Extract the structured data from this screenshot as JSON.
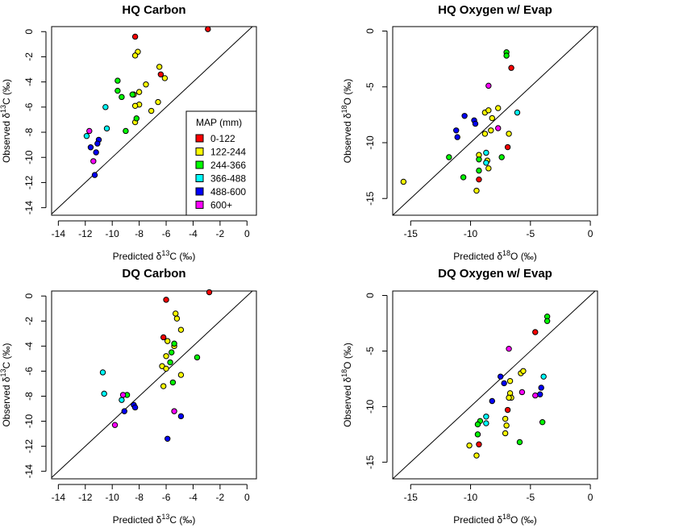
{
  "legend": {
    "title": "MAP (mm)",
    "entries": [
      {
        "label": "0-122",
        "color": "#ff0000"
      },
      {
        "label": "122-244",
        "color": "#ffff00"
      },
      {
        "label": "244-366",
        "color": "#00ff00"
      },
      {
        "label": "366-488",
        "color": "#00ffff"
      },
      {
        "label": "488-600",
        "color": "#0000ff"
      },
      {
        "label": "600+",
        "color": "#ff00ff"
      }
    ]
  },
  "chart_data": [
    {
      "type": "scatter",
      "title": "HQ Carbon",
      "xlabel": {
        "pre": "Predicted δ",
        "sup": "13",
        "post": "C (‰)"
      },
      "ylabel": {
        "pre": "Observed δ",
        "sup": "13",
        "post": "C (‰)"
      },
      "xlim": [
        -14.5,
        0.7
      ],
      "ylim": [
        -14.6,
        0.4
      ],
      "xticks": [
        -14,
        -12,
        -10,
        -8,
        -6,
        -4,
        -2,
        0
      ],
      "yticks": [
        0,
        -2,
        -4,
        -6,
        -8,
        -10,
        -12,
        -14
      ],
      "reference_line": "1:1",
      "legend_position": "bottom-right",
      "points": [
        {
          "x": -2.9,
          "y": 0.2,
          "group": 0
        },
        {
          "x": -8.3,
          "y": -0.4,
          "group": 0
        },
        {
          "x": -6.4,
          "y": -3.4,
          "group": 0
        },
        {
          "x": -8.1,
          "y": -1.6,
          "group": 1
        },
        {
          "x": -8.3,
          "y": -1.9,
          "group": 1
        },
        {
          "x": -6.5,
          "y": -2.8,
          "group": 1
        },
        {
          "x": -6.1,
          "y": -3.7,
          "group": 1
        },
        {
          "x": -7.5,
          "y": -4.2,
          "group": 1
        },
        {
          "x": -8.0,
          "y": -4.8,
          "group": 1
        },
        {
          "x": -8.4,
          "y": -5.0,
          "group": 1
        },
        {
          "x": -8.0,
          "y": -5.8,
          "group": 1
        },
        {
          "x": -8.3,
          "y": -5.9,
          "group": 1
        },
        {
          "x": -6.6,
          "y": -5.6,
          "group": 1
        },
        {
          "x": -7.1,
          "y": -6.3,
          "group": 1
        },
        {
          "x": -8.3,
          "y": -7.2,
          "group": 1
        },
        {
          "x": -9.6,
          "y": -3.9,
          "group": 2
        },
        {
          "x": -9.6,
          "y": -4.7,
          "group": 2
        },
        {
          "x": -9.3,
          "y": -5.2,
          "group": 2
        },
        {
          "x": -8.5,
          "y": -5.0,
          "group": 2
        },
        {
          "x": -8.2,
          "y": -6.9,
          "group": 2
        },
        {
          "x": -9.0,
          "y": -7.9,
          "group": 2
        },
        {
          "x": -10.5,
          "y": -6.0,
          "group": 3
        },
        {
          "x": -10.4,
          "y": -7.7,
          "group": 3
        },
        {
          "x": -11.9,
          "y": -8.3,
          "group": 3
        },
        {
          "x": -11.0,
          "y": -8.6,
          "group": 4
        },
        {
          "x": -11.1,
          "y": -8.9,
          "group": 4
        },
        {
          "x": -11.6,
          "y": -9.2,
          "group": 4
        },
        {
          "x": -11.2,
          "y": -9.6,
          "group": 4
        },
        {
          "x": -11.3,
          "y": -11.4,
          "group": 4
        },
        {
          "x": -11.7,
          "y": -7.9,
          "group": 5
        },
        {
          "x": -11.4,
          "y": -10.3,
          "group": 5
        }
      ]
    },
    {
      "type": "scatter",
      "title": "HQ Oxygen w/ Evap",
      "xlabel": {
        "pre": "Predicted δ",
        "sup": "18",
        "post": "O (‰)"
      },
      "ylabel": {
        "pre": "Observed δ",
        "sup": "18",
        "post": "O (‰)"
      },
      "xlim": [
        -16.5,
        0.6
      ],
      "ylim": [
        -16.5,
        0.4
      ],
      "xticks": [
        -15,
        -10,
        -5,
        0
      ],
      "yticks": [
        0,
        -5,
        -10,
        -15
      ],
      "reference_line": "1:1",
      "points": [
        {
          "x": -6.6,
          "y": -3.3,
          "group": 0
        },
        {
          "x": -6.9,
          "y": -10.4,
          "group": 0
        },
        {
          "x": -9.3,
          "y": -13.3,
          "group": 0
        },
        {
          "x": -15.6,
          "y": -13.5,
          "group": 1
        },
        {
          "x": -8.8,
          "y": -7.3,
          "group": 1
        },
        {
          "x": -8.5,
          "y": -7.1,
          "group": 1
        },
        {
          "x": -7.7,
          "y": -6.9,
          "group": 1
        },
        {
          "x": -8.2,
          "y": -7.8,
          "group": 1
        },
        {
          "x": -8.3,
          "y": -8.9,
          "group": 1
        },
        {
          "x": -6.8,
          "y": -9.2,
          "group": 1
        },
        {
          "x": -8.8,
          "y": -9.2,
          "group": 1
        },
        {
          "x": -9.3,
          "y": -11.1,
          "group": 1
        },
        {
          "x": -8.6,
          "y": -11.6,
          "group": 1
        },
        {
          "x": -8.5,
          "y": -12.3,
          "group": 1
        },
        {
          "x": -9.5,
          "y": -14.3,
          "group": 1
        },
        {
          "x": -7.0,
          "y": -1.9,
          "group": 2
        },
        {
          "x": -7.0,
          "y": -2.2,
          "group": 2
        },
        {
          "x": -11.8,
          "y": -11.3,
          "group": 2
        },
        {
          "x": -10.6,
          "y": -13.1,
          "group": 2
        },
        {
          "x": -9.3,
          "y": -11.5,
          "group": 2
        },
        {
          "x": -9.3,
          "y": -12.5,
          "group": 2
        },
        {
          "x": -7.4,
          "y": -11.3,
          "group": 2
        },
        {
          "x": -6.1,
          "y": -7.3,
          "group": 3
        },
        {
          "x": -8.7,
          "y": -10.9,
          "group": 3
        },
        {
          "x": -8.7,
          "y": -11.8,
          "group": 3
        },
        {
          "x": -10.5,
          "y": -7.6,
          "group": 4
        },
        {
          "x": -9.7,
          "y": -8.0,
          "group": 4
        },
        {
          "x": -9.6,
          "y": -8.3,
          "group": 4
        },
        {
          "x": -11.2,
          "y": -8.9,
          "group": 4
        },
        {
          "x": -11.1,
          "y": -9.5,
          "group": 4
        },
        {
          "x": -8.5,
          "y": -4.9,
          "group": 5
        },
        {
          "x": -7.7,
          "y": -8.7,
          "group": 5
        }
      ]
    },
    {
      "type": "scatter",
      "title": "DQ Carbon",
      "xlabel": {
        "pre": "Predicted δ",
        "sup": "13",
        "post": "C (‰)"
      },
      "ylabel": {
        "pre": "Observed δ",
        "sup": "13",
        "post": "C (‰)"
      },
      "xlim": [
        -14.5,
        0.7
      ],
      "ylim": [
        -14.6,
        0.4
      ],
      "xticks": [
        -14,
        -12,
        -10,
        -8,
        -6,
        -4,
        -2,
        0
      ],
      "yticks": [
        0,
        -2,
        -4,
        -6,
        -8,
        -10,
        -12,
        -14
      ],
      "reference_line": "1:1",
      "points": [
        {
          "x": -2.8,
          "y": 0.3,
          "group": 0
        },
        {
          "x": -6.0,
          "y": -0.3,
          "group": 0
        },
        {
          "x": -6.2,
          "y": -3.3,
          "group": 0
        },
        {
          "x": -5.3,
          "y": -1.4,
          "group": 1
        },
        {
          "x": -5.2,
          "y": -1.8,
          "group": 1
        },
        {
          "x": -4.9,
          "y": -2.7,
          "group": 1
        },
        {
          "x": -5.9,
          "y": -3.6,
          "group": 1
        },
        {
          "x": -5.4,
          "y": -4.0,
          "group": 1
        },
        {
          "x": -6.0,
          "y": -4.8,
          "group": 1
        },
        {
          "x": -6.3,
          "y": -5.6,
          "group": 1
        },
        {
          "x": -6.0,
          "y": -5.8,
          "group": 1
        },
        {
          "x": -4.9,
          "y": -6.3,
          "group": 1
        },
        {
          "x": -6.2,
          "y": -7.2,
          "group": 1
        },
        {
          "x": -5.4,
          "y": -3.8,
          "group": 2
        },
        {
          "x": -5.6,
          "y": -4.5,
          "group": 2
        },
        {
          "x": -3.7,
          "y": -4.9,
          "group": 2
        },
        {
          "x": -5.7,
          "y": -5.3,
          "group": 2
        },
        {
          "x": -5.5,
          "y": -6.9,
          "group": 2
        },
        {
          "x": -8.9,
          "y": -7.9,
          "group": 2
        },
        {
          "x": -10.7,
          "y": -6.1,
          "group": 3
        },
        {
          "x": -10.6,
          "y": -7.8,
          "group": 3
        },
        {
          "x": -9.3,
          "y": -8.3,
          "group": 3
        },
        {
          "x": -8.4,
          "y": -8.7,
          "group": 4
        },
        {
          "x": -8.3,
          "y": -8.9,
          "group": 4
        },
        {
          "x": -9.1,
          "y": -9.2,
          "group": 4
        },
        {
          "x": -4.9,
          "y": -9.6,
          "group": 4
        },
        {
          "x": -5.9,
          "y": -11.4,
          "group": 4
        },
        {
          "x": -9.2,
          "y": -7.9,
          "group": 5
        },
        {
          "x": -5.4,
          "y": -9.2,
          "group": 5
        },
        {
          "x": -9.8,
          "y": -10.3,
          "group": 5
        }
      ]
    },
    {
      "type": "scatter",
      "title": "DQ Oxygen w/ Evap",
      "xlabel": {
        "pre": "Predicted δ",
        "sup": "18",
        "post": "O (‰)"
      },
      "ylabel": {
        "pre": "Observed δ",
        "sup": "18",
        "post": "O (‰)"
      },
      "xlim": [
        -16.5,
        0.6
      ],
      "ylim": [
        -16.5,
        0.4
      ],
      "xticks": [
        -15,
        -10,
        -5,
        0
      ],
      "yticks": [
        0,
        -5,
        -10,
        -15
      ],
      "reference_line": "1:1",
      "points": [
        {
          "x": -4.6,
          "y": -3.3,
          "group": 0
        },
        {
          "x": -6.9,
          "y": -10.3,
          "group": 0
        },
        {
          "x": -9.3,
          "y": -13.4,
          "group": 0
        },
        {
          "x": -10.1,
          "y": -13.5,
          "group": 1
        },
        {
          "x": -9.5,
          "y": -14.4,
          "group": 1
        },
        {
          "x": -5.8,
          "y": -7.0,
          "group": 1
        },
        {
          "x": -5.6,
          "y": -6.8,
          "group": 1
        },
        {
          "x": -6.7,
          "y": -7.7,
          "group": 1
        },
        {
          "x": -6.7,
          "y": -8.8,
          "group": 1
        },
        {
          "x": -6.6,
          "y": -9.2,
          "group": 1
        },
        {
          "x": -6.8,
          "y": -9.2,
          "group": 1
        },
        {
          "x": -7.1,
          "y": -11.1,
          "group": 1
        },
        {
          "x": -7.0,
          "y": -11.7,
          "group": 1
        },
        {
          "x": -7.1,
          "y": -12.4,
          "group": 1
        },
        {
          "x": -3.6,
          "y": -1.9,
          "group": 2
        },
        {
          "x": -3.6,
          "y": -2.3,
          "group": 2
        },
        {
          "x": -9.2,
          "y": -11.3,
          "group": 2
        },
        {
          "x": -9.4,
          "y": -11.6,
          "group": 2
        },
        {
          "x": -9.4,
          "y": -12.5,
          "group": 2
        },
        {
          "x": -5.9,
          "y": -13.2,
          "group": 2
        },
        {
          "x": -4.0,
          "y": -11.4,
          "group": 2
        },
        {
          "x": -3.9,
          "y": -7.3,
          "group": 3
        },
        {
          "x": -8.7,
          "y": -10.9,
          "group": 3
        },
        {
          "x": -8.7,
          "y": -11.5,
          "group": 3
        },
        {
          "x": -7.5,
          "y": -7.3,
          "group": 4
        },
        {
          "x": -7.2,
          "y": -7.9,
          "group": 4
        },
        {
          "x": -8.2,
          "y": -9.5,
          "group": 4
        },
        {
          "x": -4.1,
          "y": -8.3,
          "group": 4
        },
        {
          "x": -4.2,
          "y": -8.9,
          "group": 4
        },
        {
          "x": -6.8,
          "y": -4.8,
          "group": 5
        },
        {
          "x": -5.7,
          "y": -8.7,
          "group": 5
        },
        {
          "x": -4.6,
          "y": -9.0,
          "group": 5
        }
      ]
    }
  ]
}
